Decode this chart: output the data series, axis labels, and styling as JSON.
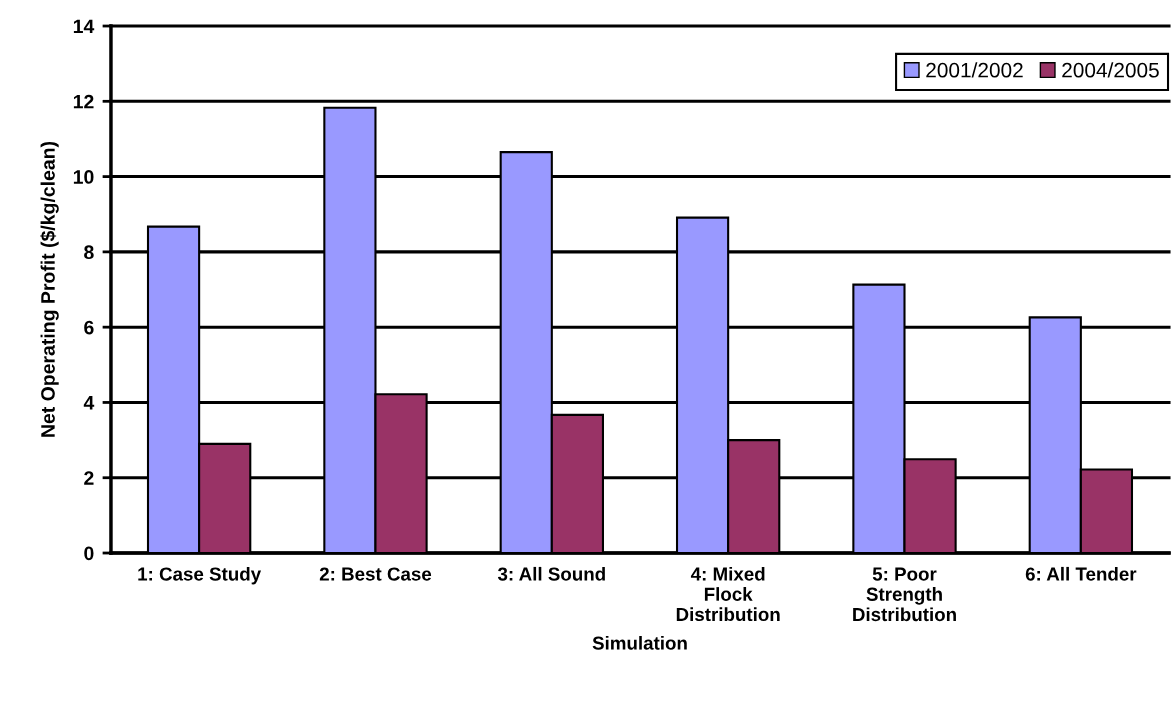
{
  "chart_data": {
    "type": "bar",
    "categories": [
      "1: Case Study",
      "2: Best Case",
      "3: All Sound",
      "4: Mixed\nFlock\nDistribution",
      "5: Poor\nStrength\nDistribution",
      "6: All Tender"
    ],
    "series": [
      {
        "name": "2001/2002",
        "color": "#9999ff",
        "values": [
          8.67,
          11.83,
          10.65,
          8.91,
          7.13,
          6.26
        ]
      },
      {
        "name": "2004/2005",
        "color": "#993366",
        "values": [
          2.9,
          4.22,
          3.67,
          3.0,
          2.49,
          2.22
        ]
      }
    ],
    "xlabel": "Simulation",
    "ylabel": "Net Operating Profit ($/kg/clean)",
    "ylim": [
      0,
      14
    ],
    "yticks": [
      0,
      2,
      4,
      6,
      8,
      10,
      12,
      14
    ],
    "grid": "y",
    "legend": "top right"
  }
}
